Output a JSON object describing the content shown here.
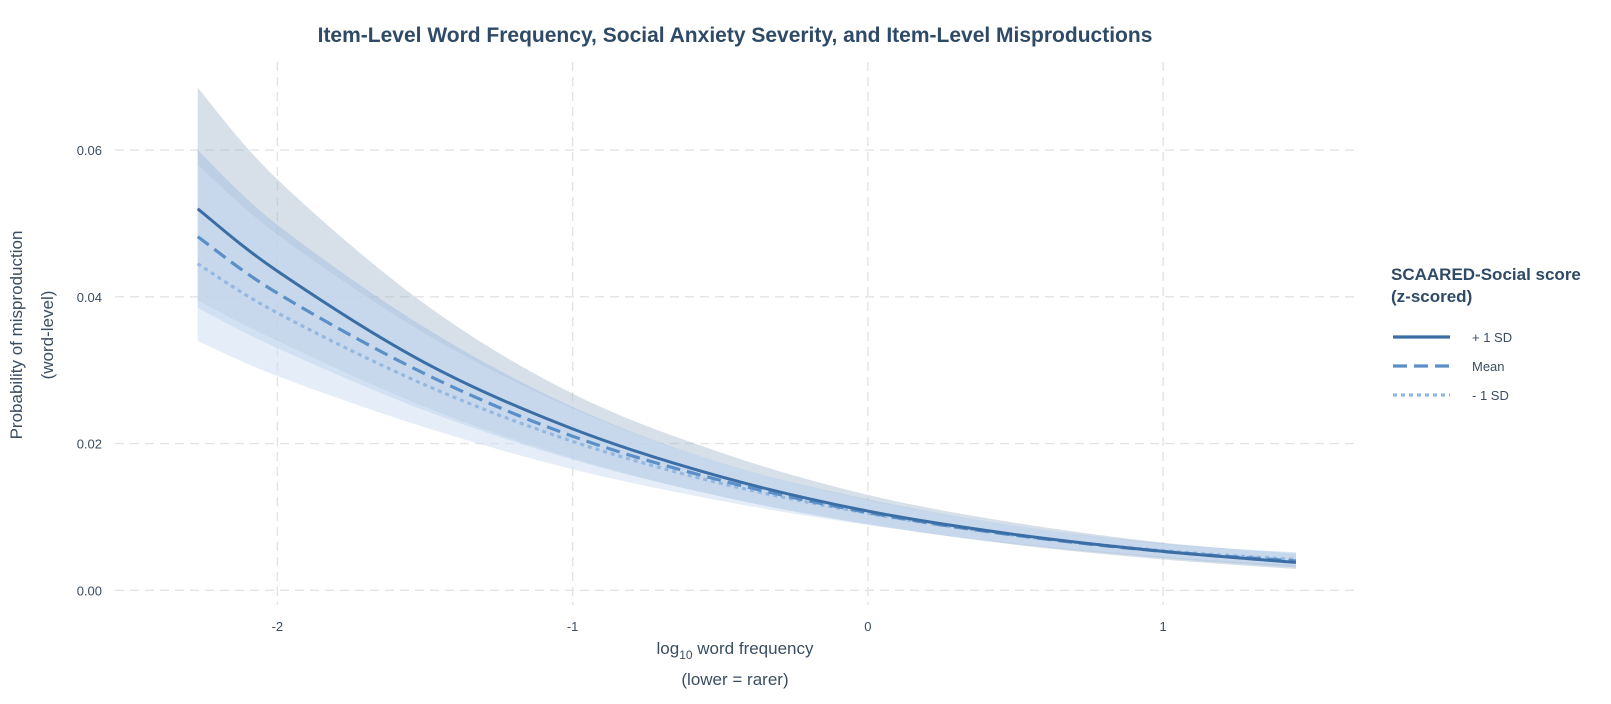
{
  "chart_data": {
    "type": "line",
    "title": "Item-Level Word Frequency, Social Anxiety Severity, and Item-Level Misproductions",
    "xlabel": {
      "prefix": "log",
      "subscript": "10",
      "suffix": " word frequency",
      "line2": "(lower = rarer)"
    },
    "ylabel": {
      "line1": "Probability of misproduction",
      "line2": "(word-level)"
    },
    "xlim": [
      -2.55,
      1.65
    ],
    "ylim": [
      -0.002,
      0.072
    ],
    "x_ticks": [
      -2,
      -1,
      0,
      1
    ],
    "x_tick_labels": [
      "-2",
      "-1",
      "0",
      "1"
    ],
    "y_ticks": [
      0.0,
      0.02,
      0.04,
      0.06
    ],
    "y_tick_labels": [
      "0.00",
      "0.02",
      "0.04",
      "0.06"
    ],
    "grid": true,
    "legend": {
      "title_line1": "SCAARED-Social score",
      "title_line2": "(z-scored)",
      "placement": "right"
    },
    "series": [
      {
        "name": "+ 1 SD",
        "line_style": "solid",
        "color": "#3a6ea5",
        "band_color": "#9fb3c8",
        "band_opacity": 0.42,
        "x": [
          -2.27,
          -2.0,
          -1.5,
          -1.0,
          -0.5,
          0.0,
          0.5,
          1.0,
          1.45
        ],
        "y": [
          0.052,
          0.0435,
          0.031,
          0.022,
          0.0155,
          0.0108,
          0.0076,
          0.0053,
          0.0038
        ],
        "lower": [
          0.0395,
          0.034,
          0.025,
          0.018,
          0.0128,
          0.009,
          0.0062,
          0.0042,
          0.0029
        ],
        "upper": [
          0.0685,
          0.056,
          0.039,
          0.0268,
          0.0188,
          0.013,
          0.0092,
          0.0065,
          0.005
        ]
      },
      {
        "name": "Mean",
        "line_style": "dashed",
        "color": "#5b8fc7",
        "band_color": "#9dbde2",
        "band_opacity": 0.45,
        "x": [
          -2.27,
          -2.0,
          -1.5,
          -1.0,
          -0.5,
          0.0,
          0.5,
          1.0,
          1.45
        ],
        "y": [
          0.0482,
          0.0405,
          0.0295,
          0.021,
          0.015,
          0.0106,
          0.0075,
          0.0053,
          0.004
        ],
        "lower": [
          0.0385,
          0.033,
          0.0245,
          0.0178,
          0.0128,
          0.009,
          0.0063,
          0.0044,
          0.0031
        ],
        "upper": [
          0.06,
          0.0498,
          0.0358,
          0.025,
          0.0174,
          0.0124,
          0.0088,
          0.0064,
          0.0051
        ]
      },
      {
        "name": "- 1 SD",
        "line_style": "dotted",
        "color": "#94b8e0",
        "band_color": "#cfe0f3",
        "band_opacity": 0.55,
        "x": [
          -2.27,
          -2.0,
          -1.5,
          -1.0,
          -0.5,
          0.0,
          0.5,
          1.0,
          1.45
        ],
        "y": [
          0.0445,
          0.0378,
          0.028,
          0.0203,
          0.0146,
          0.0105,
          0.0075,
          0.0054,
          0.0042
        ],
        "lower": [
          0.034,
          0.0292,
          0.0222,
          0.0165,
          0.0122,
          0.0089,
          0.0064,
          0.0046,
          0.0034
        ],
        "upper": [
          0.058,
          0.0485,
          0.035,
          0.0248,
          0.0174,
          0.0123,
          0.0088,
          0.0063,
          0.0052
        ]
      }
    ]
  }
}
